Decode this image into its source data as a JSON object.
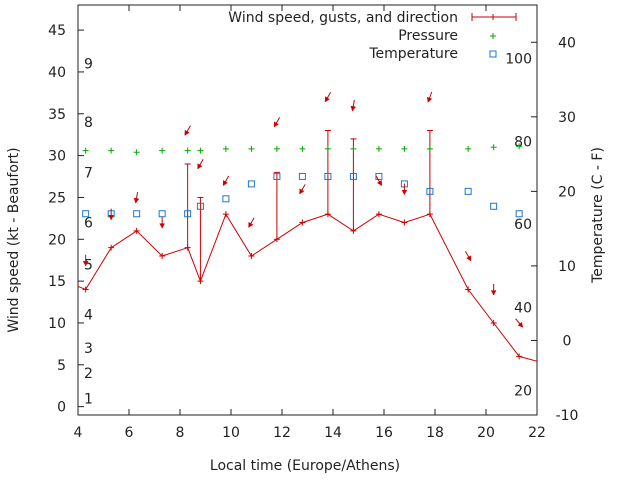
{
  "chart_data": {
    "type": "line",
    "xlabel": "Local time (Europe/Athens)",
    "ylabel_left": "Wind speed (kt - Beaufort)",
    "ylabel_right": "Temperature (C - F)",
    "xlim": [
      4,
      22
    ],
    "ylim_left": [
      -1,
      48
    ],
    "ylim_right": [
      -10,
      45
    ],
    "x_ticks": [
      4,
      6,
      8,
      10,
      12,
      14,
      16,
      18,
      20,
      22
    ],
    "y_left_ticks": [
      0,
      5,
      10,
      15,
      20,
      25,
      30,
      35,
      40,
      45
    ],
    "y_right_ticks": [
      -10,
      0,
      10,
      20,
      30,
      40
    ],
    "beaufort_labels": [
      {
        "label": "1",
        "kt": 1
      },
      {
        "label": "2",
        "kt": 4
      },
      {
        "label": "3",
        "kt": 7
      },
      {
        "label": "4",
        "kt": 11
      },
      {
        "label": "5",
        "kt": 17
      },
      {
        "label": "6",
        "kt": 22
      },
      {
        "label": "7",
        "kt": 28
      },
      {
        "label": "8",
        "kt": 34
      },
      {
        "label": "9",
        "kt": 41
      }
    ],
    "fahrenheit_labels": [
      {
        "label": "20",
        "c": -6.7
      },
      {
        "label": "40",
        "c": 4.4
      },
      {
        "label": "60",
        "c": 15.6
      },
      {
        "label": "80",
        "c": 26.7
      },
      {
        "label": "100",
        "c": 37.8
      }
    ],
    "colors": {
      "wind": "#cc0000",
      "pressure": "#00aa00",
      "temperature": "#1f77cc"
    },
    "series": [
      {
        "name": "Wind speed, gusts, and direction",
        "x": [
          3.5,
          4.3,
          5.3,
          6.3,
          7.3,
          8.3,
          8.8,
          9.8,
          10.8,
          11.8,
          12.8,
          13.8,
          14.8,
          15.8,
          16.8,
          17.8,
          19.3,
          20.3,
          21.3,
          22.5
        ],
        "y": [
          15,
          14,
          19,
          21,
          18,
          19,
          15,
          23,
          18,
          20,
          22,
          23,
          21,
          23,
          22,
          23,
          14,
          10,
          6,
          5
        ],
        "gusts": [
          null,
          null,
          null,
          null,
          null,
          29,
          25,
          null,
          null,
          28,
          null,
          33,
          32,
          null,
          null,
          33,
          null,
          null,
          null,
          null
        ]
      },
      {
        "name": "Pressure",
        "x": [
          4.3,
          5.3,
          6.3,
          7.3,
          8.3,
          8.8,
          9.8,
          10.8,
          11.8,
          12.8,
          13.8,
          14.8,
          15.8,
          16.8,
          17.8,
          19.3,
          20.3,
          21.3
        ],
        "y": [
          30.6,
          30.6,
          30.4,
          30.6,
          30.6,
          30.6,
          30.8,
          30.8,
          30.8,
          30.8,
          30.8,
          30.8,
          30.8,
          30.8,
          30.8,
          30.8,
          31.0,
          31.1
        ]
      },
      {
        "name": "Temperature",
        "x": [
          4.3,
          5.3,
          6.3,
          7.3,
          8.3,
          8.8,
          9.8,
          10.8,
          11.8,
          12.8,
          13.8,
          14.8,
          15.8,
          16.8,
          17.8,
          19.3,
          20.3,
          21.3
        ],
        "y": [
          17,
          17,
          17,
          17,
          17,
          18,
          19,
          21,
          22,
          22,
          22,
          22,
          22,
          21,
          20,
          20,
          18,
          17
        ]
      }
    ],
    "wind_arrows": [
      {
        "x": 4.3,
        "kt": 17.5,
        "dir_deg": 0
      },
      {
        "x": 5.3,
        "kt": 23,
        "dir_deg": 0
      },
      {
        "x": 6.3,
        "kt": 25,
        "dir_deg": 10
      },
      {
        "x": 7.3,
        "kt": 22,
        "dir_deg": 0
      },
      {
        "x": 8.3,
        "kt": 33,
        "dir_deg": 30
      },
      {
        "x": 8.8,
        "kt": 29,
        "dir_deg": 30
      },
      {
        "x": 9.8,
        "kt": 27,
        "dir_deg": 30
      },
      {
        "x": 10.8,
        "kt": 22,
        "dir_deg": 30
      },
      {
        "x": 11.8,
        "kt": 34,
        "dir_deg": 30
      },
      {
        "x": 12.8,
        "kt": 26,
        "dir_deg": 30
      },
      {
        "x": 13.8,
        "kt": 37,
        "dir_deg": 30
      },
      {
        "x": 14.8,
        "kt": 36,
        "dir_deg": 10
      },
      {
        "x": 15.8,
        "kt": 27,
        "dir_deg": 330
      },
      {
        "x": 16.8,
        "kt": 26,
        "dir_deg": 0
      },
      {
        "x": 17.8,
        "kt": 37,
        "dir_deg": 20
      },
      {
        "x": 19.3,
        "kt": 18,
        "dir_deg": 330
      },
      {
        "x": 20.3,
        "kt": 14,
        "dir_deg": 0
      },
      {
        "x": 21.3,
        "kt": 10,
        "dir_deg": 320
      }
    ],
    "legend": "top-right",
    "grid": false
  }
}
